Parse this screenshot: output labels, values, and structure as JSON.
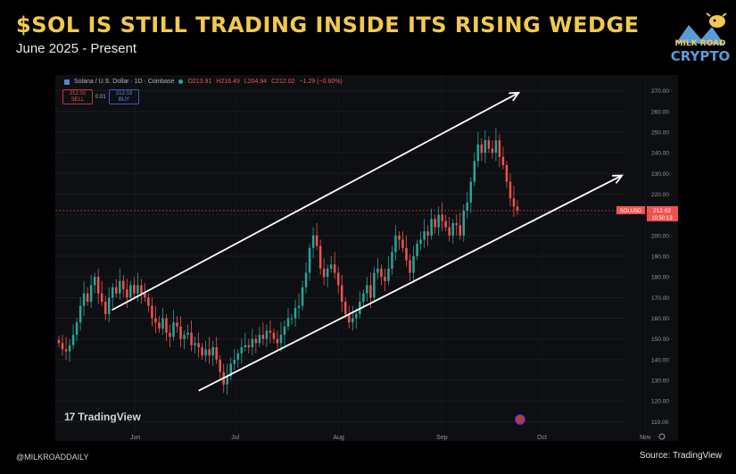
{
  "header": {
    "title": "$SOL IS STILL TRADING INSIDE ITS RISING WEDGE",
    "subtitle": "June 2025 - Present"
  },
  "logo": {
    "line1": "MILK ROAD",
    "line2": "CRYPTO",
    "icon": "milk-road-cow-icon"
  },
  "colors": {
    "headline": "#f2c94c",
    "up": "#26a69a",
    "down": "#ef5350",
    "trendline": "#ffffff",
    "price_tag": "#ef5350"
  },
  "toolbar": {
    "symbol": "Solana / U.S. Dollar · 1D · Coinbase",
    "open": "O213.91",
    "high": "H216.49",
    "low": "L204.94",
    "close": "C212.02",
    "change": "−1.29 (−0.60%)",
    "sell_price": "212.02",
    "sell_label": "SELL",
    "spread": "0.01",
    "buy_price": "212.03",
    "buy_label": "BUY"
  },
  "branding": {
    "tradingview": "TradingView",
    "handle": "@MILKROADDAILY",
    "source": "Source: TradingView"
  },
  "chart_data": {
    "type": "candlestick",
    "symbol": "SOLUSD",
    "last_price": "212.02",
    "countdown": "10:50:13",
    "ylim": [
      105,
      275
    ],
    "y_ticks": [
      "110.00",
      "120.00",
      "130.00",
      "140.00",
      "150.00",
      "160.00",
      "170.00",
      "180.00",
      "190.00",
      "200.00",
      "210.00",
      "220.00",
      "230.00",
      "240.00",
      "250.00",
      "260.00",
      "270.00"
    ],
    "x_ticks": [
      "Jun",
      "Jul",
      "Aug",
      "Sep",
      "Oct",
      "Nov"
    ],
    "x_tick_dates": [
      "2025-06-01",
      "2025-07-01",
      "2025-08-01",
      "2025-09-01",
      "2025-10-01",
      "2025-11-01"
    ],
    "xlim": [
      "2025-05-08",
      "2025-11-06"
    ],
    "wedge_upper": [
      [
        "2025-05-25",
        164
      ],
      [
        "2025-09-24",
        269
      ]
    ],
    "wedge_lower": [
      [
        "2025-06-20",
        125
      ],
      [
        "2025-10-25",
        229
      ]
    ],
    "close_prices": [
      148,
      145,
      144,
      147,
      152,
      158,
      166,
      172,
      168,
      176,
      180,
      172,
      168,
      162,
      170,
      175,
      172,
      178,
      174,
      170,
      176,
      172,
      176,
      172,
      170,
      166,
      160,
      158,
      155,
      160,
      153,
      151,
      158,
      156,
      150,
      152,
      153,
      147,
      148,
      146,
      142,
      145,
      142,
      146,
      140,
      134,
      128,
      132,
      138,
      140,
      143,
      146,
      147,
      146,
      150,
      148,
      152,
      150,
      154,
      153,
      150,
      148,
      152,
      156,
      160,
      160,
      165,
      166,
      175,
      182,
      194,
      200,
      195,
      184,
      180,
      184,
      186,
      182,
      176,
      168,
      162,
      158,
      160,
      162,
      168,
      172,
      176,
      170,
      182,
      184,
      180,
      178,
      184,
      192,
      200,
      198,
      194,
      188,
      182,
      190,
      196,
      198,
      202,
      200,
      208,
      204,
      210,
      207,
      204,
      200,
      206,
      205,
      200,
      212,
      216,
      226,
      236,
      244,
      240,
      246,
      242,
      240,
      246,
      238,
      234,
      226,
      218,
      214,
      212
    ]
  }
}
